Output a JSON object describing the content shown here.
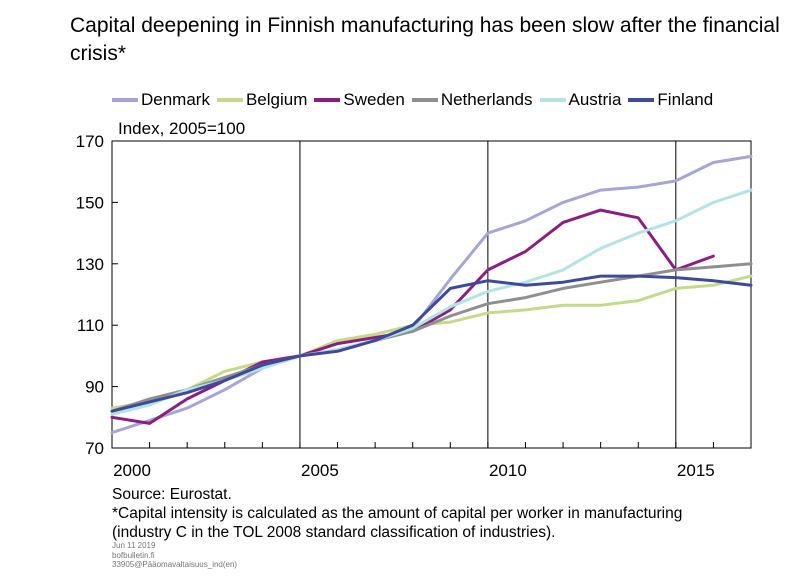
{
  "title": "Capital deepening in Finnish manufacturing has been slow after the financial crisis*",
  "unit_label": "Index, 2005=100",
  "footer": {
    "source": "Source: Eurostat.",
    "note_line1": "*Capital intensity is calculated as the amount of capital per worker in manufacturing",
    "note_line2": "(industry C in the TOL 2008 standard classification of industries)."
  },
  "meta": {
    "date": "Jun 11 2019",
    "site": "bofbulletin.fi",
    "code": "33905@Pääomavaltaisuus_ind(en)"
  },
  "chart_data": {
    "type": "line",
    "title": "Capital deepening in Finnish manufacturing has been slow after the financial crisis*",
    "ylabel": "Index, 2005=100",
    "xlabel": "",
    "x": [
      2000,
      2001,
      2002,
      2003,
      2004,
      2005,
      2006,
      2007,
      2008,
      2009,
      2010,
      2011,
      2012,
      2013,
      2014,
      2015,
      2016,
      2017
    ],
    "xlim": [
      2000,
      2017
    ],
    "ylim": [
      70,
      170
    ],
    "x_ticks": [
      2000,
      2005,
      2010,
      2015
    ],
    "y_ticks": [
      70,
      90,
      110,
      130,
      150,
      170
    ],
    "grid": "vertical",
    "legend": "top",
    "series": [
      {
        "name": "Denmark",
        "color": "#a6a6d6",
        "values": [
          75,
          79,
          83,
          89,
          96,
          100,
          102,
          105,
          109,
          125,
          140,
          144,
          150,
          154,
          155,
          157,
          163,
          165
        ]
      },
      {
        "name": "Belgium",
        "color": "#c5d98a",
        "values": [
          83,
          85,
          89,
          95,
          98,
          100,
          105,
          107,
          110,
          111,
          114,
          115,
          116.5,
          116.5,
          118,
          122,
          123,
          126
        ]
      },
      {
        "name": "Sweden",
        "color": "#8b1e7e",
        "values": [
          80,
          78,
          86,
          92,
          98,
          100,
          104,
          106,
          108,
          115,
          128,
          134,
          143.5,
          147.5,
          145,
          128,
          132.5,
          null
        ]
      },
      {
        "name": "Netherlands",
        "color": "#8f8f8f",
        "values": [
          82,
          86,
          89,
          93,
          97,
          100,
          102,
          105,
          108,
          113,
          117,
          119,
          122,
          124,
          126,
          128,
          129,
          130
        ]
      },
      {
        "name": "Austria",
        "color": "#b3e3e3",
        "values": [
          81,
          84,
          89,
          92,
          96,
          100,
          102,
          105,
          109,
          116,
          121,
          124,
          128,
          135,
          140,
          144,
          150,
          154
        ]
      },
      {
        "name": "Finland",
        "color": "#3d4a9c",
        "values": [
          82,
          85,
          88,
          92,
          97,
          100,
          101.5,
          105,
          110,
          122,
          124.5,
          123,
          124,
          126,
          126,
          125.5,
          124.5,
          123
        ]
      }
    ]
  }
}
